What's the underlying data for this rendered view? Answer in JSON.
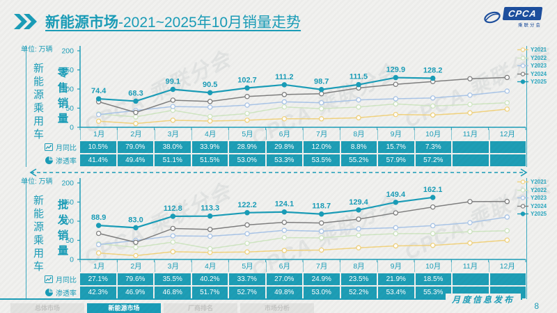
{
  "header": {
    "title_bold": "新能源市场",
    "title_rest": "-2021~2025年10月销量走势",
    "logo_text": "CPCA",
    "logo_subtext": "乘联分会"
  },
  "page": {
    "caption": "月度信息发布",
    "number": "8"
  },
  "watermark": "CPCA 乘联分会",
  "colors": {
    "accent": "#1a9db8",
    "cell": "#1e9eb6",
    "logo_blue": "#1d4f9e"
  },
  "months": [
    "1月",
    "2月",
    "3月",
    "4月",
    "5月",
    "6月",
    "7月",
    "8月",
    "9月",
    "10月",
    "11月",
    "12月"
  ],
  "footer_tabs": [
    {
      "label": "总体市场",
      "active": false
    },
    {
      "label": "新能源市场",
      "active": true
    },
    {
      "label": "厂商排名",
      "active": false
    },
    {
      "label": "市场分析",
      "active": false
    }
  ],
  "chart_data": [
    {
      "type": "line",
      "title": "零售销量",
      "group_label": "新能源乘用车",
      "unit": "单位: 万辆",
      "ylim": [
        0,
        200
      ],
      "yticks": [
        0,
        50,
        100,
        150,
        200
      ],
      "grid": false,
      "legend_position": "right",
      "categories": [
        "1月",
        "2月",
        "3月",
        "4月",
        "5月",
        "6月",
        "7月",
        "8月",
        "9月",
        "10月",
        "11月",
        "12月"
      ],
      "series": [
        {
          "name": "Y2021",
          "color": "#f2d37e",
          "marker": "open",
          "values": [
            15.8,
            9.7,
            18.5,
            16.3,
            18.5,
            22.3,
            22.2,
            24.9,
            33.4,
            32.1,
            37.8,
            47.5
          ]
        },
        {
          "name": "Y2022",
          "color": "#cfe6c2",
          "marker": "open",
          "values": [
            34.7,
            27.2,
            44.5,
            28.2,
            36.0,
            53.2,
            48.6,
            52.9,
            61.1,
            55.6,
            59.8,
            64.0
          ]
        },
        {
          "name": "Y2023",
          "color": "#a9c5e8",
          "marker": "open",
          "values": [
            33.2,
            43.9,
            54.3,
            52.7,
            58.0,
            66.5,
            64.1,
            71.6,
            74.6,
            76.7,
            84.1,
            94.5
          ]
        },
        {
          "name": "Y2024",
          "color": "#7f7f7f",
          "marker": "open",
          "values": [
            66.8,
            38.8,
            70.9,
            67.4,
            80.4,
            85.6,
            87.8,
            102.7,
            112.3,
            119.6,
            126.8,
            130.2
          ]
        },
        {
          "name": "Y2025",
          "color": "#1a9db8",
          "marker": "solid",
          "labeled": true,
          "values": [
            74.4,
            68.3,
            99.1,
            90.5,
            102.7,
            111.2,
            98.7,
            111.5,
            129.9,
            128.2
          ]
        }
      ],
      "value_labels": [
        "74.4",
        "68.3",
        "99.1",
        "90.5",
        "102.7",
        "111.2",
        "98.7",
        "111.5",
        "129.9",
        "128.2"
      ],
      "rows": [
        {
          "label": "月同比",
          "icon": "trend-icon",
          "values": [
            "10.5%",
            "79.0%",
            "38.0%",
            "33.9%",
            "28.9%",
            "29.8%",
            "12.0%",
            "8.8%",
            "15.7%",
            "7.3%",
            "",
            ""
          ]
        },
        {
          "label": "渗透率",
          "icon": "pie-icon",
          "values": [
            "41.4%",
            "49.4%",
            "51.1%",
            "51.5%",
            "53.0%",
            "53.3%",
            "53.5%",
            "55.2%",
            "57.9%",
            "57.2%",
            "",
            ""
          ]
        }
      ]
    },
    {
      "type": "line",
      "title": "批发销量",
      "group_label": "新能源乘用车",
      "unit": "单位: 万辆",
      "ylim": [
        0,
        200
      ],
      "yticks": [
        0,
        50,
        100,
        150,
        200
      ],
      "grid": false,
      "legend_position": "right",
      "categories": [
        "1月",
        "2月",
        "3月",
        "4月",
        "5月",
        "6月",
        "7月",
        "8月",
        "9月",
        "10月",
        "11月",
        "12月"
      ],
      "series": [
        {
          "name": "Y2021",
          "color": "#f2d37e",
          "marker": "open",
          "values": [
            16.8,
            10.0,
            20.2,
            18.4,
            19.6,
            23.5,
            24.6,
            30.4,
            35.5,
            36.8,
            42.9,
            50.5
          ]
        },
        {
          "name": "Y2022",
          "color": "#cfe6c2",
          "marker": "open",
          "values": [
            41.2,
            31.7,
            45.5,
            28.0,
            42.1,
            57.1,
            56.4,
            63.2,
            67.5,
            67.6,
            72.8,
            75.0
          ]
        },
        {
          "name": "Y2023",
          "color": "#a9c5e8",
          "marker": "open",
          "values": [
            38.9,
            49.6,
            61.7,
            60.7,
            67.3,
            76.1,
            73.7,
            80.0,
            83.0,
            88.3,
            96.2,
            110.8
          ]
        },
        {
          "name": "Y2024",
          "color": "#7f7f7f",
          "marker": "open",
          "values": [
            68.2,
            44.7,
            81.0,
            78.5,
            90.2,
            97.1,
            95.2,
            105.3,
            121.7,
            137.1,
            151.2,
            151.5
          ]
        },
        {
          "name": "Y2025",
          "color": "#1a9db8",
          "marker": "solid",
          "labeled": true,
          "values": [
            88.9,
            83.0,
            112.8,
            113.3,
            122.2,
            124.1,
            118.7,
            129.4,
            149.4,
            162.1
          ]
        }
      ],
      "value_labels": [
        "88.9",
        "83.0",
        "112.8",
        "113.3",
        "122.2",
        "124.1",
        "118.7",
        "129.4",
        "149.4",
        "162.1"
      ],
      "rows": [
        {
          "label": "月同比",
          "icon": "trend-icon",
          "values": [
            "27.1%",
            "79.6%",
            "35.5%",
            "40.2%",
            "33.7%",
            "27.0%",
            "24.9%",
            "23.5%",
            "21.9%",
            "18.5%",
            "",
            ""
          ]
        },
        {
          "label": "渗透率",
          "icon": "pie-icon",
          "values": [
            "42.3%",
            "46.9%",
            "46.8%",
            "51.7%",
            "52.7%",
            "49.8%",
            "53.0%",
            "52.2%",
            "53.4%",
            "55.3%",
            "",
            ""
          ]
        }
      ]
    }
  ]
}
